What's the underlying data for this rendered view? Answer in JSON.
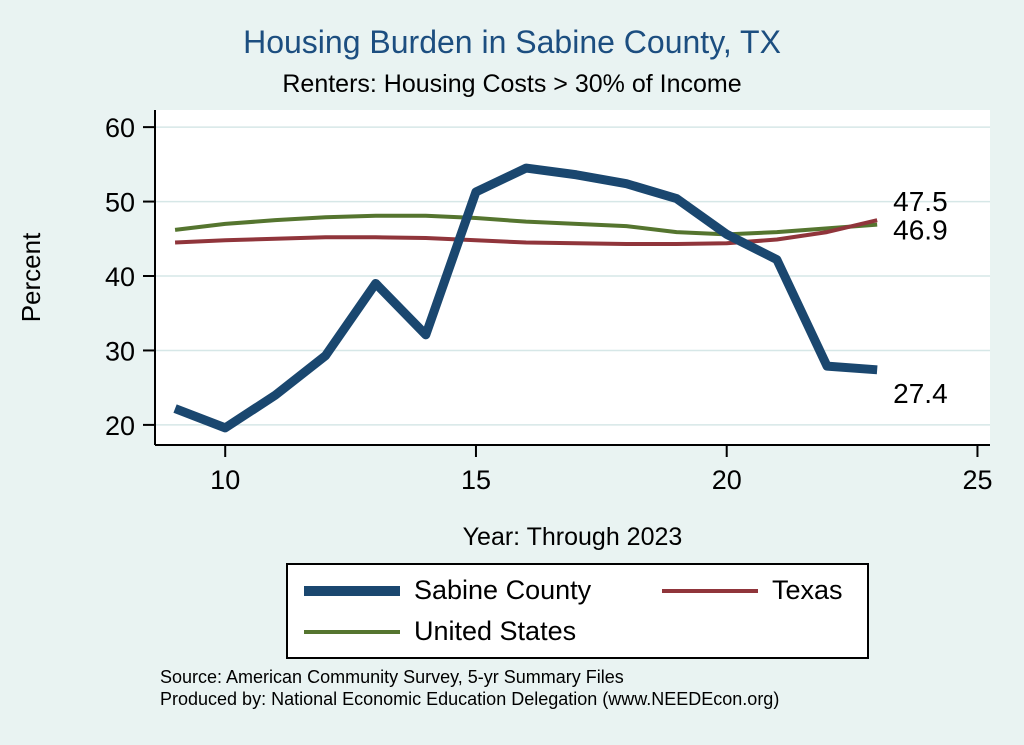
{
  "title": "Housing Burden in Sabine County, TX",
  "subtitle": "Renters: Housing Costs > 30% of Income",
  "xlabel": "Year: Through 2023",
  "ylabel": "Percent",
  "footnotes": [
    "Source: American Community Survey, 5-yr Summary Files",
    "Produced by: National Economic Education Delegation (www.NEEDEcon.org)"
  ],
  "colors": {
    "background": "#e9f3f2",
    "plot_bg": "#ffffff",
    "grid": "#d6e7e7",
    "axis": "#000000",
    "title": "#1c4e80",
    "sabine": "#1a476f",
    "texas": "#90353b",
    "us": "#55752f"
  },
  "chart_data": {
    "type": "line",
    "x": [
      9,
      10,
      11,
      12,
      13,
      14,
      15,
      16,
      17,
      18,
      19,
      20,
      21,
      22,
      23
    ],
    "series": [
      {
        "name": "Sabine County",
        "color": "#1a476f",
        "width": 9,
        "values": [
          22.2,
          19.6,
          24.0,
          29.3,
          39.0,
          32.1,
          51.3,
          54.5,
          53.6,
          52.4,
          50.4,
          45.6,
          42.2,
          27.9,
          27.4
        ],
        "end_label": "27.4"
      },
      {
        "name": "Texas",
        "color": "#90353b",
        "width": 4,
        "values": [
          44.5,
          44.8,
          45.0,
          45.2,
          45.2,
          45.1,
          44.8,
          44.5,
          44.4,
          44.3,
          44.3,
          44.4,
          44.9,
          45.9,
          47.5
        ],
        "end_label": "47.5"
      },
      {
        "name": "United States",
        "color": "#55752f",
        "width": 4,
        "values": [
          46.2,
          47.0,
          47.5,
          47.9,
          48.1,
          48.1,
          47.8,
          47.3,
          47.0,
          46.7,
          45.9,
          45.6,
          45.9,
          46.4,
          46.9
        ],
        "end_label": "46.9"
      }
    ],
    "xticks": [
      10,
      15,
      20,
      25
    ],
    "yticks": [
      20,
      30,
      40,
      50,
      60
    ],
    "xlim": [
      8.6,
      25.25
    ],
    "ylim": [
      17.3,
      62.3
    ],
    "grid": "horizontal",
    "legend_position": "bottom"
  }
}
